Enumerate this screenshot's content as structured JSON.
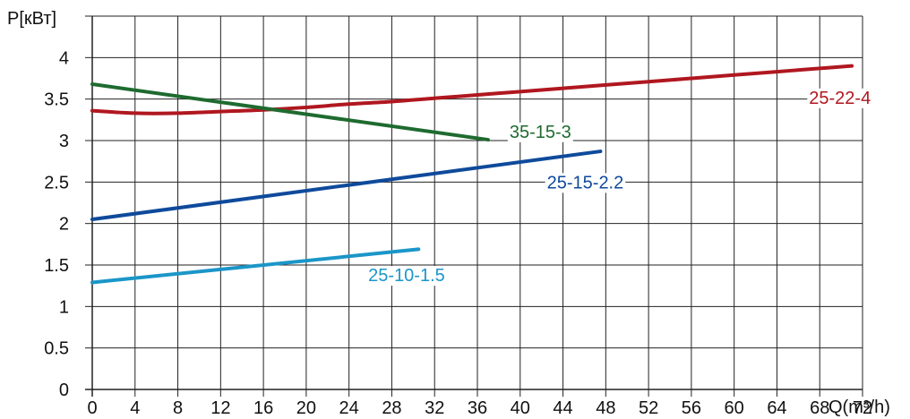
{
  "chart_data": {
    "type": "line",
    "ylabel": "P[кВт]",
    "xlabel": "Q(m³/h)",
    "xlim": [
      0,
      72
    ],
    "ylim": [
      0,
      4.5
    ],
    "x_ticks": [
      0,
      4,
      8,
      12,
      16,
      20,
      24,
      28,
      32,
      36,
      40,
      44,
      48,
      52,
      56,
      60,
      64,
      68,
      72
    ],
    "y_ticks": [
      0,
      0.5,
      1,
      1.5,
      2,
      2.5,
      3,
      3.5,
      4
    ],
    "y_tick_labels": [
      "0",
      "0.5",
      "1",
      "1.5",
      "2",
      "2.5",
      "3",
      "3.5",
      "4"
    ],
    "grid": true,
    "series": [
      {
        "name": "25-22-4",
        "color": "#B0171F",
        "x": [
          0,
          4,
          8,
          12,
          16,
          20,
          24,
          28,
          32,
          36,
          40,
          44,
          48,
          52,
          56,
          60,
          64,
          68,
          71
        ],
        "y": [
          3.36,
          3.33,
          3.33,
          3.35,
          3.37,
          3.4,
          3.44,
          3.47,
          3.51,
          3.55,
          3.59,
          3.63,
          3.67,
          3.71,
          3.75,
          3.79,
          3.83,
          3.87,
          3.9
        ]
      },
      {
        "name": "35-15-3",
        "color": "#1E6B2F",
        "x": [
          0,
          37
        ],
        "y": [
          3.68,
          3.01
        ]
      },
      {
        "name": "25-15-2.2",
        "color": "#0F4A9B",
        "x": [
          0,
          47.5
        ],
        "y": [
          2.05,
          2.87
        ]
      },
      {
        "name": "25-10-1.5",
        "color": "#1B96C8",
        "x": [
          0,
          30.5
        ],
        "y": [
          1.29,
          1.69
        ]
      }
    ]
  }
}
